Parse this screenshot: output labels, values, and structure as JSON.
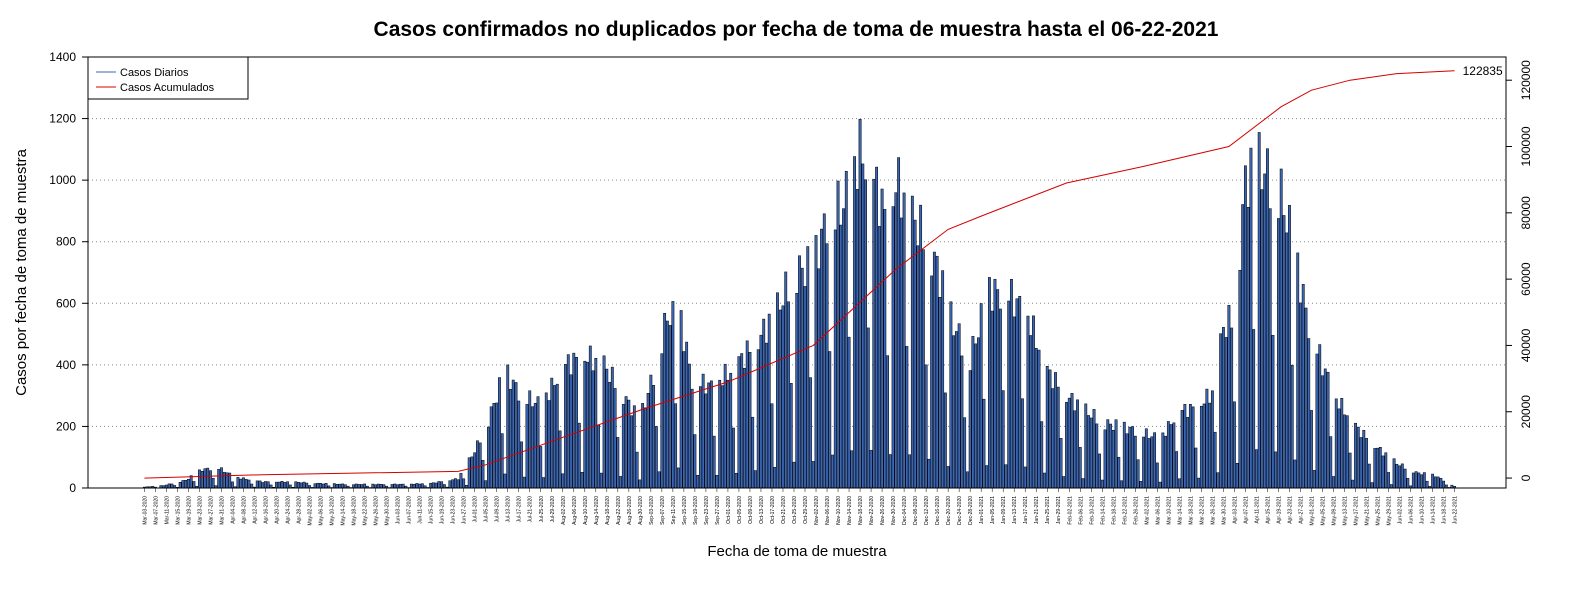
{
  "chart_data": {
    "type": "bar",
    "title": "Casos confirmados no duplicados por fecha de toma de muestra hasta el 06-22-2021",
    "xlabel": "Fecha de toma de muestra",
    "ylabel": "Casos por fecha de toma de muestra",
    "ylim": [
      0,
      1400
    ],
    "y_ticks": [
      0,
      200,
      400,
      600,
      800,
      1000,
      1200,
      1400
    ],
    "y2lim": [
      -3000,
      127000
    ],
    "y2_ticks": [
      0,
      20000,
      40000,
      60000,
      80000,
      100000,
      120000
    ],
    "grid": "horizontal dotted",
    "legend_position": "top-left",
    "colors": {
      "daily": "#3a66b4",
      "cumulative": "#d40000"
    },
    "x_start_date": "2020-03-03",
    "x_end_date": "2021-06-22",
    "x_tick_every_days": 4,
    "series": [
      {
        "name": "Casos Diarios",
        "kind": "bar",
        "axis": "left",
        "anchors": [
          [
            "2020-03-03",
            3
          ],
          [
            "2020-03-10",
            8
          ],
          [
            "2020-03-18",
            25
          ],
          [
            "2020-03-24",
            60
          ],
          [
            "2020-03-30",
            65
          ],
          [
            "2020-04-05",
            35
          ],
          [
            "2020-04-15",
            20
          ],
          [
            "2020-04-25",
            20
          ],
          [
            "2020-05-05",
            15
          ],
          [
            "2020-05-15",
            12
          ],
          [
            "2020-05-25",
            12
          ],
          [
            "2020-06-05",
            12
          ],
          [
            "2020-06-15",
            15
          ],
          [
            "2020-06-25",
            30
          ],
          [
            "2020-07-01",
            120
          ],
          [
            "2020-07-06",
            220
          ],
          [
            "2020-07-12",
            380
          ],
          [
            "2020-07-18",
            300
          ],
          [
            "2020-07-25",
            270
          ],
          [
            "2020-08-03",
            400
          ],
          [
            "2020-08-10",
            430
          ],
          [
            "2020-08-17",
            400
          ],
          [
            "2020-08-24",
            300
          ],
          [
            "2020-08-30",
            220
          ],
          [
            "2020-09-05",
            400
          ],
          [
            "2020-09-09",
            560
          ],
          [
            "2020-09-14",
            540
          ],
          [
            "2020-09-18",
            350
          ],
          [
            "2020-09-25",
            330
          ],
          [
            "2020-10-02",
            380
          ],
          [
            "2020-10-10",
            460
          ],
          [
            "2020-10-18",
            560
          ],
          [
            "2020-10-25",
            700
          ],
          [
            "2020-11-01",
            720
          ],
          [
            "2020-11-06",
            880
          ],
          [
            "2020-11-12",
            920
          ],
          [
            "2020-11-18",
            1100
          ],
          [
            "2020-11-23",
            1000
          ],
          [
            "2020-11-28",
            860
          ],
          [
            "2020-12-01",
            1000
          ],
          [
            "2020-12-06",
            900
          ],
          [
            "2020-12-11",
            820
          ],
          [
            "2020-12-16",
            720
          ],
          [
            "2020-12-21",
            550
          ],
          [
            "2020-12-28",
            420
          ],
          [
            "2021-01-04",
            640
          ],
          [
            "2021-01-11",
            630
          ],
          [
            "2021-01-18",
            560
          ],
          [
            "2021-01-25",
            380
          ],
          [
            "2021-02-01",
            300
          ],
          [
            "2021-02-08",
            250
          ],
          [
            "2021-02-15",
            210
          ],
          [
            "2021-02-25",
            190
          ],
          [
            "2021-03-07",
            160
          ],
          [
            "2021-03-14",
            250
          ],
          [
            "2021-03-20",
            260
          ],
          [
            "2021-03-26",
            310
          ],
          [
            "2021-03-30",
            520
          ],
          [
            "2021-04-03",
            560
          ],
          [
            "2021-04-07",
            1000
          ],
          [
            "2021-04-12",
            1050
          ],
          [
            "2021-04-15",
            1020
          ],
          [
            "2021-04-20",
            950
          ],
          [
            "2021-04-25",
            760
          ],
          [
            "2021-04-30",
            530
          ],
          [
            "2021-05-05",
            400
          ],
          [
            "2021-05-10",
            290
          ],
          [
            "2021-05-18",
            190
          ],
          [
            "2021-05-25",
            130
          ],
          [
            "2021-06-01",
            80
          ],
          [
            "2021-06-08",
            50
          ],
          [
            "2021-06-15",
            40
          ],
          [
            "2021-06-19",
            20
          ],
          [
            "2021-06-22",
            5
          ]
        ]
      },
      {
        "name": "Casos Acumulados",
        "kind": "line",
        "axis": "right",
        "points": [
          [
            "2020-03-03",
            0
          ],
          [
            "2020-04-15",
            1000
          ],
          [
            "2020-06-25",
            2000
          ],
          [
            "2020-07-05",
            4000
          ],
          [
            "2020-08-01",
            12000
          ],
          [
            "2020-09-01",
            21000
          ],
          [
            "2020-10-01",
            29000
          ],
          [
            "2020-11-01",
            40000
          ],
          [
            "2020-12-01",
            63000
          ],
          [
            "2020-12-20",
            75000
          ],
          [
            "2021-01-01",
            79000
          ],
          [
            "2021-02-01",
            89000
          ],
          [
            "2021-03-01",
            94000
          ],
          [
            "2021-04-01",
            100000
          ],
          [
            "2021-04-20",
            112000
          ],
          [
            "2021-05-01",
            117000
          ],
          [
            "2021-05-15",
            120000
          ],
          [
            "2021-06-01",
            122000
          ],
          [
            "2021-06-22",
            122835
          ]
        ]
      }
    ],
    "annotations": [
      "122835"
    ]
  }
}
